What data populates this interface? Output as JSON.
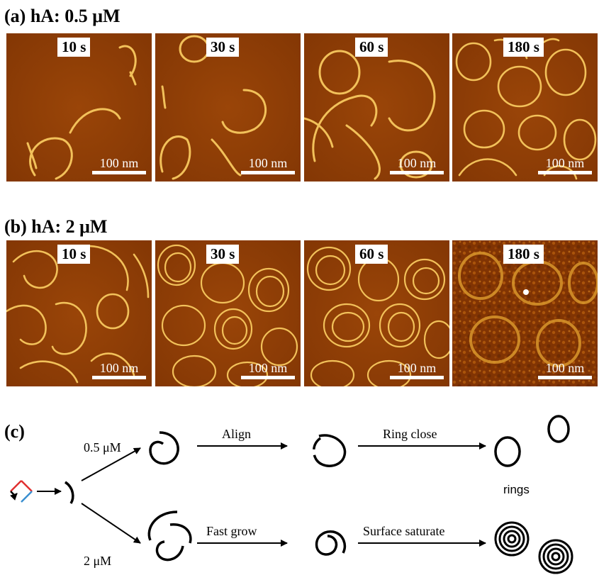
{
  "panel_a": {
    "title": "(a) hA: 0.5 μM",
    "times": [
      "10 s",
      "30 s",
      "60 s",
      "180 s"
    ],
    "scale_bar": "100 nm"
  },
  "panel_b": {
    "title": "(b) hA: 2 μM",
    "times": [
      "10 s",
      "30 s",
      "60 s",
      "180 s"
    ],
    "scale_bar": "100 nm"
  },
  "panel_c": {
    "label": "(c)",
    "conc_low": "0.5 μM",
    "conc_high": "2 μM",
    "step_align": "Align",
    "step_ring_close": "Ring close",
    "result_rings": "rings",
    "step_fast_grow": "Fast grow",
    "step_surface_saturate": "Surface saturate"
  },
  "colors": {
    "afm_background": "#8f3d05",
    "afm_fibril": "#f2c15a",
    "monomer_red": "#e03030",
    "monomer_blue": "#3a8fd0"
  }
}
